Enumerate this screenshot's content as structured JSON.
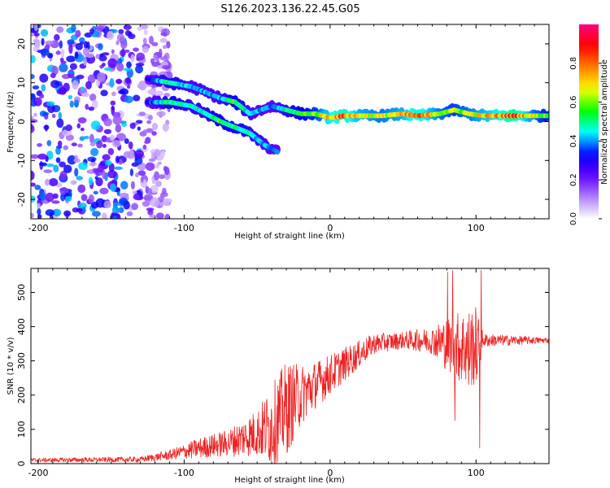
{
  "title": "S126.2023.136.22.45.G05",
  "chart_data": [
    {
      "type": "heatmap",
      "name": "spectrogram",
      "xlabel": "Height of straight line (km)",
      "ylabel": "Frequency (Hz)",
      "xlim": [
        -205,
        150
      ],
      "ylim": [
        -25,
        25
      ],
      "xticks": [
        -200,
        -100,
        0,
        100
      ],
      "yticks": [
        -20,
        -10,
        0,
        10,
        20
      ],
      "colorbar": {
        "label": "Normalized spectral amplitude",
        "range": [
          0.0,
          1.0
        ],
        "ticks": [
          0.0,
          0.2,
          0.4,
          0.6,
          0.8
        ],
        "tick_labels": [
          "0.0",
          "0.2",
          "0.4",
          "0.6",
          "0.8"
        ],
        "colors": [
          "#ffffff",
          "#b080ff",
          "#6000ff",
          "#0000ff",
          "#00ffff",
          "#00ff00",
          "#ffff00",
          "#ff8000",
          "#ff0000",
          "#ff0080"
        ]
      },
      "ridge": [
        {
          "x": -125,
          "f": 11,
          "a": 0.35
        },
        {
          "x": -110,
          "f": 10,
          "a": 0.55
        },
        {
          "x": -95,
          "f": 9,
          "a": 0.45
        },
        {
          "x": -75,
          "f": 6,
          "a": 0.45
        },
        {
          "x": -65,
          "f": 5,
          "a": 0.6
        },
        {
          "x": -55,
          "f": 2,
          "a": 0.45
        },
        {
          "x": -40,
          "f": 4,
          "a": 0.4
        },
        {
          "x": -30,
          "f": 3,
          "a": 0.5
        },
        {
          "x": -20,
          "f": 2,
          "a": 0.6
        },
        {
          "x": -10,
          "f": 2,
          "a": 0.65
        },
        {
          "x": 0,
          "f": 1,
          "a": 0.8
        },
        {
          "x": 10,
          "f": 1.5,
          "a": 0.85
        },
        {
          "x": 20,
          "f": 1.5,
          "a": 0.75
        },
        {
          "x": 35,
          "f": 1.5,
          "a": 0.7
        },
        {
          "x": 50,
          "f": 2,
          "a": 0.75
        },
        {
          "x": 60,
          "f": 1.5,
          "a": 0.85
        },
        {
          "x": 75,
          "f": 2,
          "a": 0.7
        },
        {
          "x": 85,
          "f": 3,
          "a": 0.65
        },
        {
          "x": 95,
          "f": 2,
          "a": 0.7
        },
        {
          "x": 105,
          "f": 1.5,
          "a": 0.75
        },
        {
          "x": 115,
          "f": 1.5,
          "a": 0.8
        },
        {
          "x": 125,
          "f": 1.5,
          "a": 0.9
        },
        {
          "x": 140,
          "f": 1.5,
          "a": 0.7
        },
        {
          "x": 150,
          "f": 1.5,
          "a": 0.6
        }
      ],
      "ridge_secondary": [
        {
          "x": -125,
          "f": 5,
          "a": 0.35
        },
        {
          "x": -110,
          "f": 5,
          "a": 0.55
        },
        {
          "x": -95,
          "f": 4,
          "a": 0.5
        },
        {
          "x": -85,
          "f": 2,
          "a": 0.5
        },
        {
          "x": -75,
          "f": 0,
          "a": 0.6
        },
        {
          "x": -55,
          "f": -3,
          "a": 0.5
        },
        {
          "x": -45,
          "f": -6,
          "a": 0.45
        },
        {
          "x": -35,
          "f": -8,
          "a": 0.4
        }
      ]
    },
    {
      "type": "line",
      "name": "snr",
      "color": "#ee2222",
      "xlabel": "Height of straight line (km)",
      "ylabel": "SNR (10 * v/v)",
      "xlim": [
        -205,
        150
      ],
      "ylim": [
        0,
        570
      ],
      "xticks": [
        -200,
        -100,
        0,
        100
      ],
      "yticks": [
        0,
        100,
        200,
        300,
        400,
        500
      ],
      "envelope": [
        {
          "x": -205,
          "mean": 10,
          "spread": 6
        },
        {
          "x": -130,
          "mean": 12,
          "spread": 8
        },
        {
          "x": -110,
          "mean": 25,
          "spread": 15
        },
        {
          "x": -90,
          "mean": 45,
          "spread": 30
        },
        {
          "x": -70,
          "mean": 60,
          "spread": 40
        },
        {
          "x": -50,
          "mean": 90,
          "spread": 70
        },
        {
          "x": -40,
          "mean": 110,
          "spread": 120
        },
        {
          "x": -30,
          "mean": 160,
          "spread": 140
        },
        {
          "x": -20,
          "mean": 200,
          "spread": 90
        },
        {
          "x": -10,
          "mean": 230,
          "spread": 70
        },
        {
          "x": 0,
          "mean": 260,
          "spread": 60
        },
        {
          "x": 10,
          "mean": 290,
          "spread": 50
        },
        {
          "x": 20,
          "mean": 320,
          "spread": 40
        },
        {
          "x": 30,
          "mean": 350,
          "spread": 30
        },
        {
          "x": 50,
          "mean": 360,
          "spread": 25
        },
        {
          "x": 70,
          "mean": 360,
          "spread": 40
        },
        {
          "x": 80,
          "mean": 350,
          "spread": 80
        },
        {
          "x": 90,
          "mean": 340,
          "spread": 110
        },
        {
          "x": 100,
          "mean": 340,
          "spread": 120
        },
        {
          "x": 105,
          "mean": 360,
          "spread": 20
        },
        {
          "x": 150,
          "mean": 360,
          "spread": 8
        }
      ],
      "spikes": [
        {
          "x": 80.5,
          "y": 560
        },
        {
          "x": 84,
          "y": 565
        },
        {
          "x": 85.5,
          "y": 125
        },
        {
          "x": 95,
          "y": 230
        },
        {
          "x": 102.5,
          "y": 45
        },
        {
          "x": 103.5,
          "y": 565
        }
      ]
    }
  ]
}
